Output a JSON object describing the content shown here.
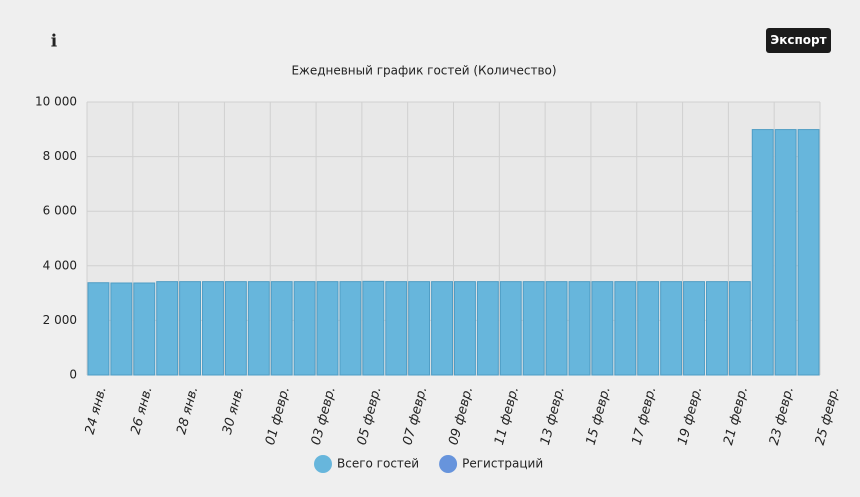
{
  "export_label": "Экспорт",
  "info_icon": "i",
  "chart_data": {
    "type": "bar",
    "title": "Ежедневный график гостей (Количество)",
    "categories": [
      "24 янв.",
      null,
      "26 янв.",
      null,
      "28 янв.",
      null,
      "30 янв.",
      null,
      "01 февр.",
      null,
      "03 февр.",
      null,
      "05 февр.",
      null,
      "07 февр.",
      null,
      "09 февр.",
      null,
      "11 февр.",
      null,
      "13 февр.",
      null,
      "15 февр.",
      null,
      "17 февр.",
      null,
      "19 февр.",
      null,
      "21 февр.",
      null,
      "23 февр.",
      null,
      "25 февр."
    ],
    "series": [
      {
        "name": "Всего гостей",
        "color": "#67b6dc",
        "values": [
          3380,
          3370,
          3370,
          3420,
          3420,
          3420,
          3420,
          3420,
          3420,
          3420,
          3420,
          3420,
          3430,
          3420,
          3420,
          3420,
          3420,
          3420,
          3420,
          3420,
          3420,
          3420,
          3420,
          3420,
          3420,
          3420,
          3420,
          3420,
          3420,
          8990,
          8990,
          8990,
          null
        ]
      },
      {
        "name": "Регистраций",
        "color": "#6794dc",
        "values": [
          0,
          0,
          0,
          0,
          0,
          0,
          0,
          0,
          0,
          0,
          0,
          0,
          0,
          0,
          0,
          0,
          0,
          0,
          0,
          0,
          0,
          0,
          0,
          0,
          0,
          0,
          0,
          0,
          0,
          0,
          0,
          0,
          null
        ]
      }
    ],
    "ylim": [
      0,
      10000
    ],
    "yticks": [
      0,
      {
        "value": 2000,
        "label": "2 000"
      },
      {
        "value": 4000,
        "label": "4 000"
      },
      {
        "value": 6000,
        "label": "6 000"
      },
      {
        "value": 8000,
        "label": "8 000"
      },
      {
        "value": 10000,
        "label": "10 000"
      }
    ],
    "grid": true
  }
}
